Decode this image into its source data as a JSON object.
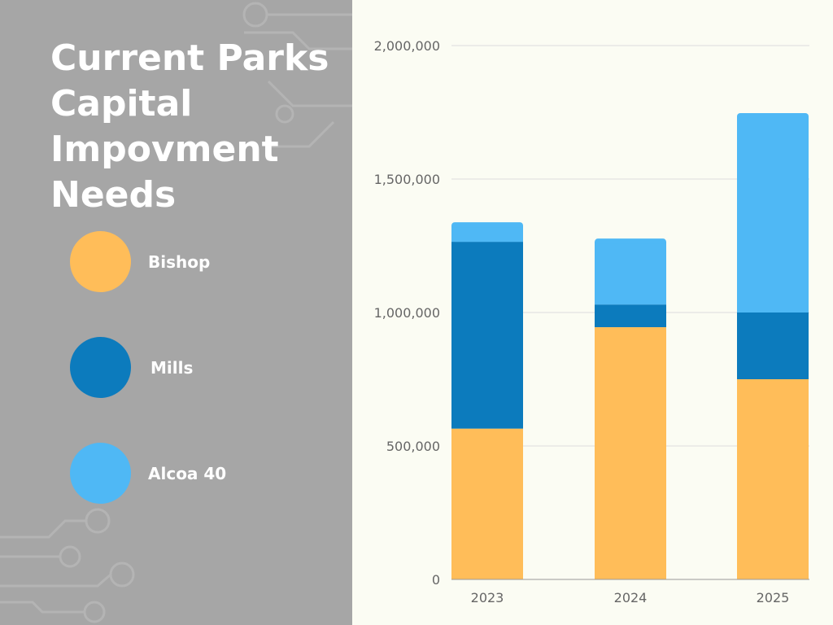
{
  "title": "Current Parks Capital Impovment Needs",
  "legend": [
    {
      "label": "Bishop",
      "color": "#ffbd59"
    },
    {
      "label": "Mills",
      "color": "#0c7bbd"
    },
    {
      "label": "Alcoa 40",
      "color": "#4fb8f5"
    }
  ],
  "chart_data": {
    "type": "bar",
    "stacked": true,
    "title": "Current Parks Capital Impovment Needs",
    "categories": [
      "2023",
      "2024",
      "2025"
    ],
    "series": [
      {
        "name": "Bishop",
        "color": "#ffbd59",
        "values": [
          565000,
          945000,
          750000
        ]
      },
      {
        "name": "Mills",
        "color": "#0c7bbd",
        "values": [
          700000,
          85000,
          250000
        ]
      },
      {
        "name": "Alcoa 40",
        "color": "#4fb8f5",
        "values": [
          73000,
          247000,
          747000
        ]
      }
    ],
    "ylim": [
      0,
      2000000
    ],
    "yticks": [
      0,
      500000,
      1000000,
      1500000,
      2000000
    ],
    "ytick_labels": [
      "0",
      "500,000",
      "1,000,000",
      "1,500,000",
      "2,000,000"
    ],
    "grid": true,
    "legend_position": "left"
  }
}
